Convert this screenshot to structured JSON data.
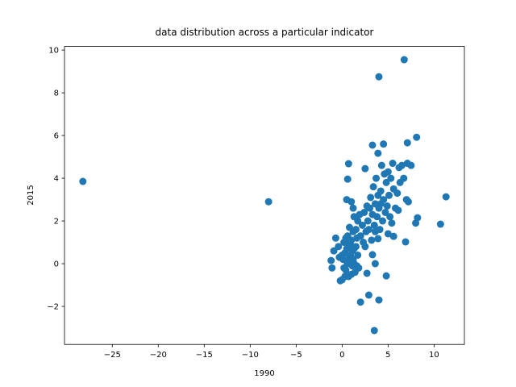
{
  "chart_data": {
    "type": "scatter",
    "title": "data distribution across a particular indicator",
    "x_label": "1990",
    "y_label": "2015",
    "color": "#1f77b4",
    "x": [
      -28.2,
      -8.0,
      6.75,
      4.0,
      11.3,
      10.7,
      3.5,
      4.0,
      2.0,
      2.9,
      4.8,
      8.1,
      7.1,
      4.5,
      3.3,
      3.9,
      0.7,
      0.6,
      2.5,
      0.5,
      8.2,
      8.0,
      6.9,
      5.6,
      5.0,
      3.9,
      3.3,
      3.6,
      2.7,
      -1.2,
      -1.1,
      -0.9,
      -0.7,
      -0.4,
      -0.2,
      0,
      0.1,
      0.2,
      0.3,
      0.4,
      0.5,
      0.6,
      0.7,
      0.8,
      0.9,
      1.0,
      1.1,
      1.2,
      1.3,
      1.4,
      1.5,
      1.6,
      1.7,
      1.8,
      0.3,
      0.6,
      0.9,
      1.2,
      0.0,
      0.4,
      0.8,
      1.0,
      1.3,
      0.2,
      1.6,
      0.5,
      1.1,
      -0.3,
      0.7,
      1.0,
      1.2,
      1.3,
      1.5,
      1.7,
      2.0,
      2.2,
      2.4,
      2.5,
      2.6,
      2.8,
      3.0,
      3.1,
      3.2,
      3.3,
      3.4,
      3.5,
      3.6,
      3.7,
      3.8,
      3.9,
      4.0,
      4.1,
      4.2,
      4.3,
      4.4,
      4.5,
      4.6,
      4.7,
      4.8,
      4.9,
      5.0,
      5.1,
      5.2,
      5.3,
      5.5,
      5.6,
      5.8,
      6.0,
      6.2,
      6.3,
      6.5,
      6.7,
      7.0,
      7.2,
      7.5,
      7.1,
      6.1,
      2.9,
      2.3,
      1.9,
      3.6,
      4.2,
      2.7,
      5.4
    ],
    "values": [
      3.85,
      2.9,
      9.55,
      8.75,
      3.13,
      1.85,
      -3.13,
      -1.7,
      -1.8,
      -1.47,
      -0.57,
      5.92,
      5.66,
      5.6,
      5.55,
      5.17,
      4.68,
      3.96,
      4.45,
      3.0,
      2.15,
      1.9,
      1.02,
      1.28,
      1.4,
      1.17,
      0.42,
      0.0,
      -0.45,
      0.15,
      -0.2,
      0.6,
      1.2,
      0.8,
      -0.8,
      -0.75,
      0.2,
      1.0,
      0.5,
      -0.3,
      0.1,
      1.3,
      -0.6,
      0.3,
      0.9,
      -0.5,
      0.6,
      1.5,
      0.0,
      -0.4,
      0.8,
      1.2,
      0.4,
      -0.2,
      -0.6,
      0.0,
      0.4,
      0.2,
      0.4,
      1.2,
      1.7,
      1.1,
      0.7,
      -0.2,
      -0.1,
      0.7,
      -0.1,
      0.3,
      0.9,
      2.9,
      2.6,
      2.2,
      1.6,
      2.0,
      1.3,
      1.8,
      2.4,
      0.8,
      1.5,
      2.0,
      2.6,
      3.1,
      1.1,
      2.3,
      3.6,
      1.8,
      2.8,
      4.0,
      2.2,
      3.2,
      2.6,
      1.6,
      3.4,
      4.6,
      2.0,
      3.0,
      4.2,
      2.4,
      3.8,
      2.7,
      4.3,
      3.2,
      2.2,
      4.0,
      4.7,
      3.5,
      2.6,
      3.3,
      4.5,
      3.8,
      4.6,
      4.0,
      3.0,
      2.9,
      4.6,
      4.7,
      2.5,
      1.6,
      1.0,
      2.3,
      1.5,
      2.8,
      2.7,
      1.9
    ],
    "xlim": [
      -30.2,
      13.3
    ],
    "ylim": [
      -3.78,
      10.17
    ],
    "xticks": [
      {
        "value": -25,
        "label": "−25"
      },
      {
        "value": -20,
        "label": "−20"
      },
      {
        "value": -15,
        "label": "−15"
      },
      {
        "value": -10,
        "label": "−10"
      },
      {
        "value": -5,
        "label": "−5"
      },
      0,
      5,
      10
    ],
    "yticks": [
      {
        "value": -2,
        "label": "−2"
      },
      0,
      2,
      4,
      6,
      8,
      10
    ]
  }
}
